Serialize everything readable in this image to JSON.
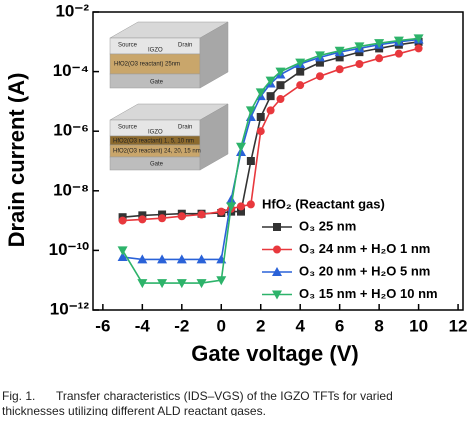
{
  "chart_data": {
    "type": "line",
    "log_y": true,
    "xlabel": "Gate voltage (V)",
    "ylabel": "Drain current (A)",
    "xlim": [
      -6.5,
      12.25
    ],
    "xticks": [
      -6,
      -4,
      -2,
      0,
      2,
      4,
      6,
      8,
      10,
      12
    ],
    "ylim": [
      1e-12,
      0.01
    ],
    "yticks": [
      {
        "value": 1e-12,
        "label": "10⁻¹²"
      },
      {
        "value": 1e-10,
        "label": "10⁻¹⁰"
      },
      {
        "value": 1e-08,
        "label": "10⁻⁸"
      },
      {
        "value": 1e-06,
        "label": "10⁻⁶"
      },
      {
        "value": 0.0001,
        "label": "10⁻⁴"
      },
      {
        "value": 0.01,
        "label": "10⁻²"
      }
    ],
    "legend_title": "HfO₂ (Reactant gas)",
    "x": [
      -5,
      -4,
      -3,
      -2,
      -1,
      0,
      0.5,
      1,
      1.5,
      2,
      2.5,
      3,
      4,
      5,
      6,
      7,
      8,
      9,
      10
    ],
    "series": [
      {
        "name": "O₃ 25 nm",
        "color": "#333333",
        "marker": "square",
        "values": [
          1.3e-09,
          1.5e-09,
          1.6e-09,
          1.7e-09,
          1.7e-09,
          1.8e-09,
          2e-09,
          2e-09,
          1e-07,
          3e-06,
          1.5e-05,
          3.5e-05,
          0.0001,
          0.0002,
          0.0003,
          0.00045,
          0.0006,
          0.0008,
          0.001
        ]
      },
      {
        "name": "O₃ 24 nm + H₂O 1 nm",
        "color": "#e8383d",
        "marker": "circle",
        "values": [
          1e-09,
          1.1e-09,
          1.2e-09,
          1.4e-09,
          1.6e-09,
          2e-09,
          2.5e-09,
          3e-09,
          3.5e-09,
          1e-06,
          5e-06,
          1.2e-05,
          3.5e-05,
          7e-05,
          0.00012,
          0.00018,
          0.00028,
          0.0004,
          0.0006
        ]
      },
      {
        "name": "O₃ 20 nm + H₂O 5 nm",
        "color": "#2a62d8",
        "marker": "triangle-up",
        "values": [
          6e-11,
          5e-11,
          5e-11,
          5e-11,
          5e-11,
          5e-11,
          5e-09,
          2e-07,
          3e-06,
          1.5e-05,
          4e-05,
          8e-05,
          0.00018,
          0.0003,
          0.00045,
          0.0006,
          0.0008,
          0.001,
          0.0012
        ]
      },
      {
        "name": "O₃ 15 nm + H₂O 10 nm",
        "color": "#2db36a",
        "marker": "triangle-down",
        "values": [
          1e-10,
          8e-12,
          8e-12,
          8e-12,
          8e-12,
          1e-11,
          3e-09,
          3e-07,
          5e-06,
          2e-05,
          5e-05,
          0.0001,
          0.0002,
          0.00035,
          0.0005,
          0.0007,
          0.0009,
          0.0011,
          0.0013
        ]
      }
    ]
  },
  "insets": [
    {
      "source": "Source",
      "channel": "IGZO",
      "drain": "Drain",
      "layers": [
        "HfO2(O3 reactant) 25nm"
      ],
      "gate": "Gate"
    },
    {
      "source": "Source",
      "channel": "IGZO",
      "drain": "Drain",
      "layers": [
        "HfO2(O3 reactant) 1, 5, 10 nm",
        "HfO2(O3 reactant) 24, 20, 15 nm"
      ],
      "gate": "Gate"
    }
  ],
  "caption": {
    "label": "Fig. 1.",
    "text": "Transfer characteristics (IDS–VGS) of the IGZO TFTs for varied",
    "text2": "thicknesses utilizing different ALD reactant gases."
  }
}
